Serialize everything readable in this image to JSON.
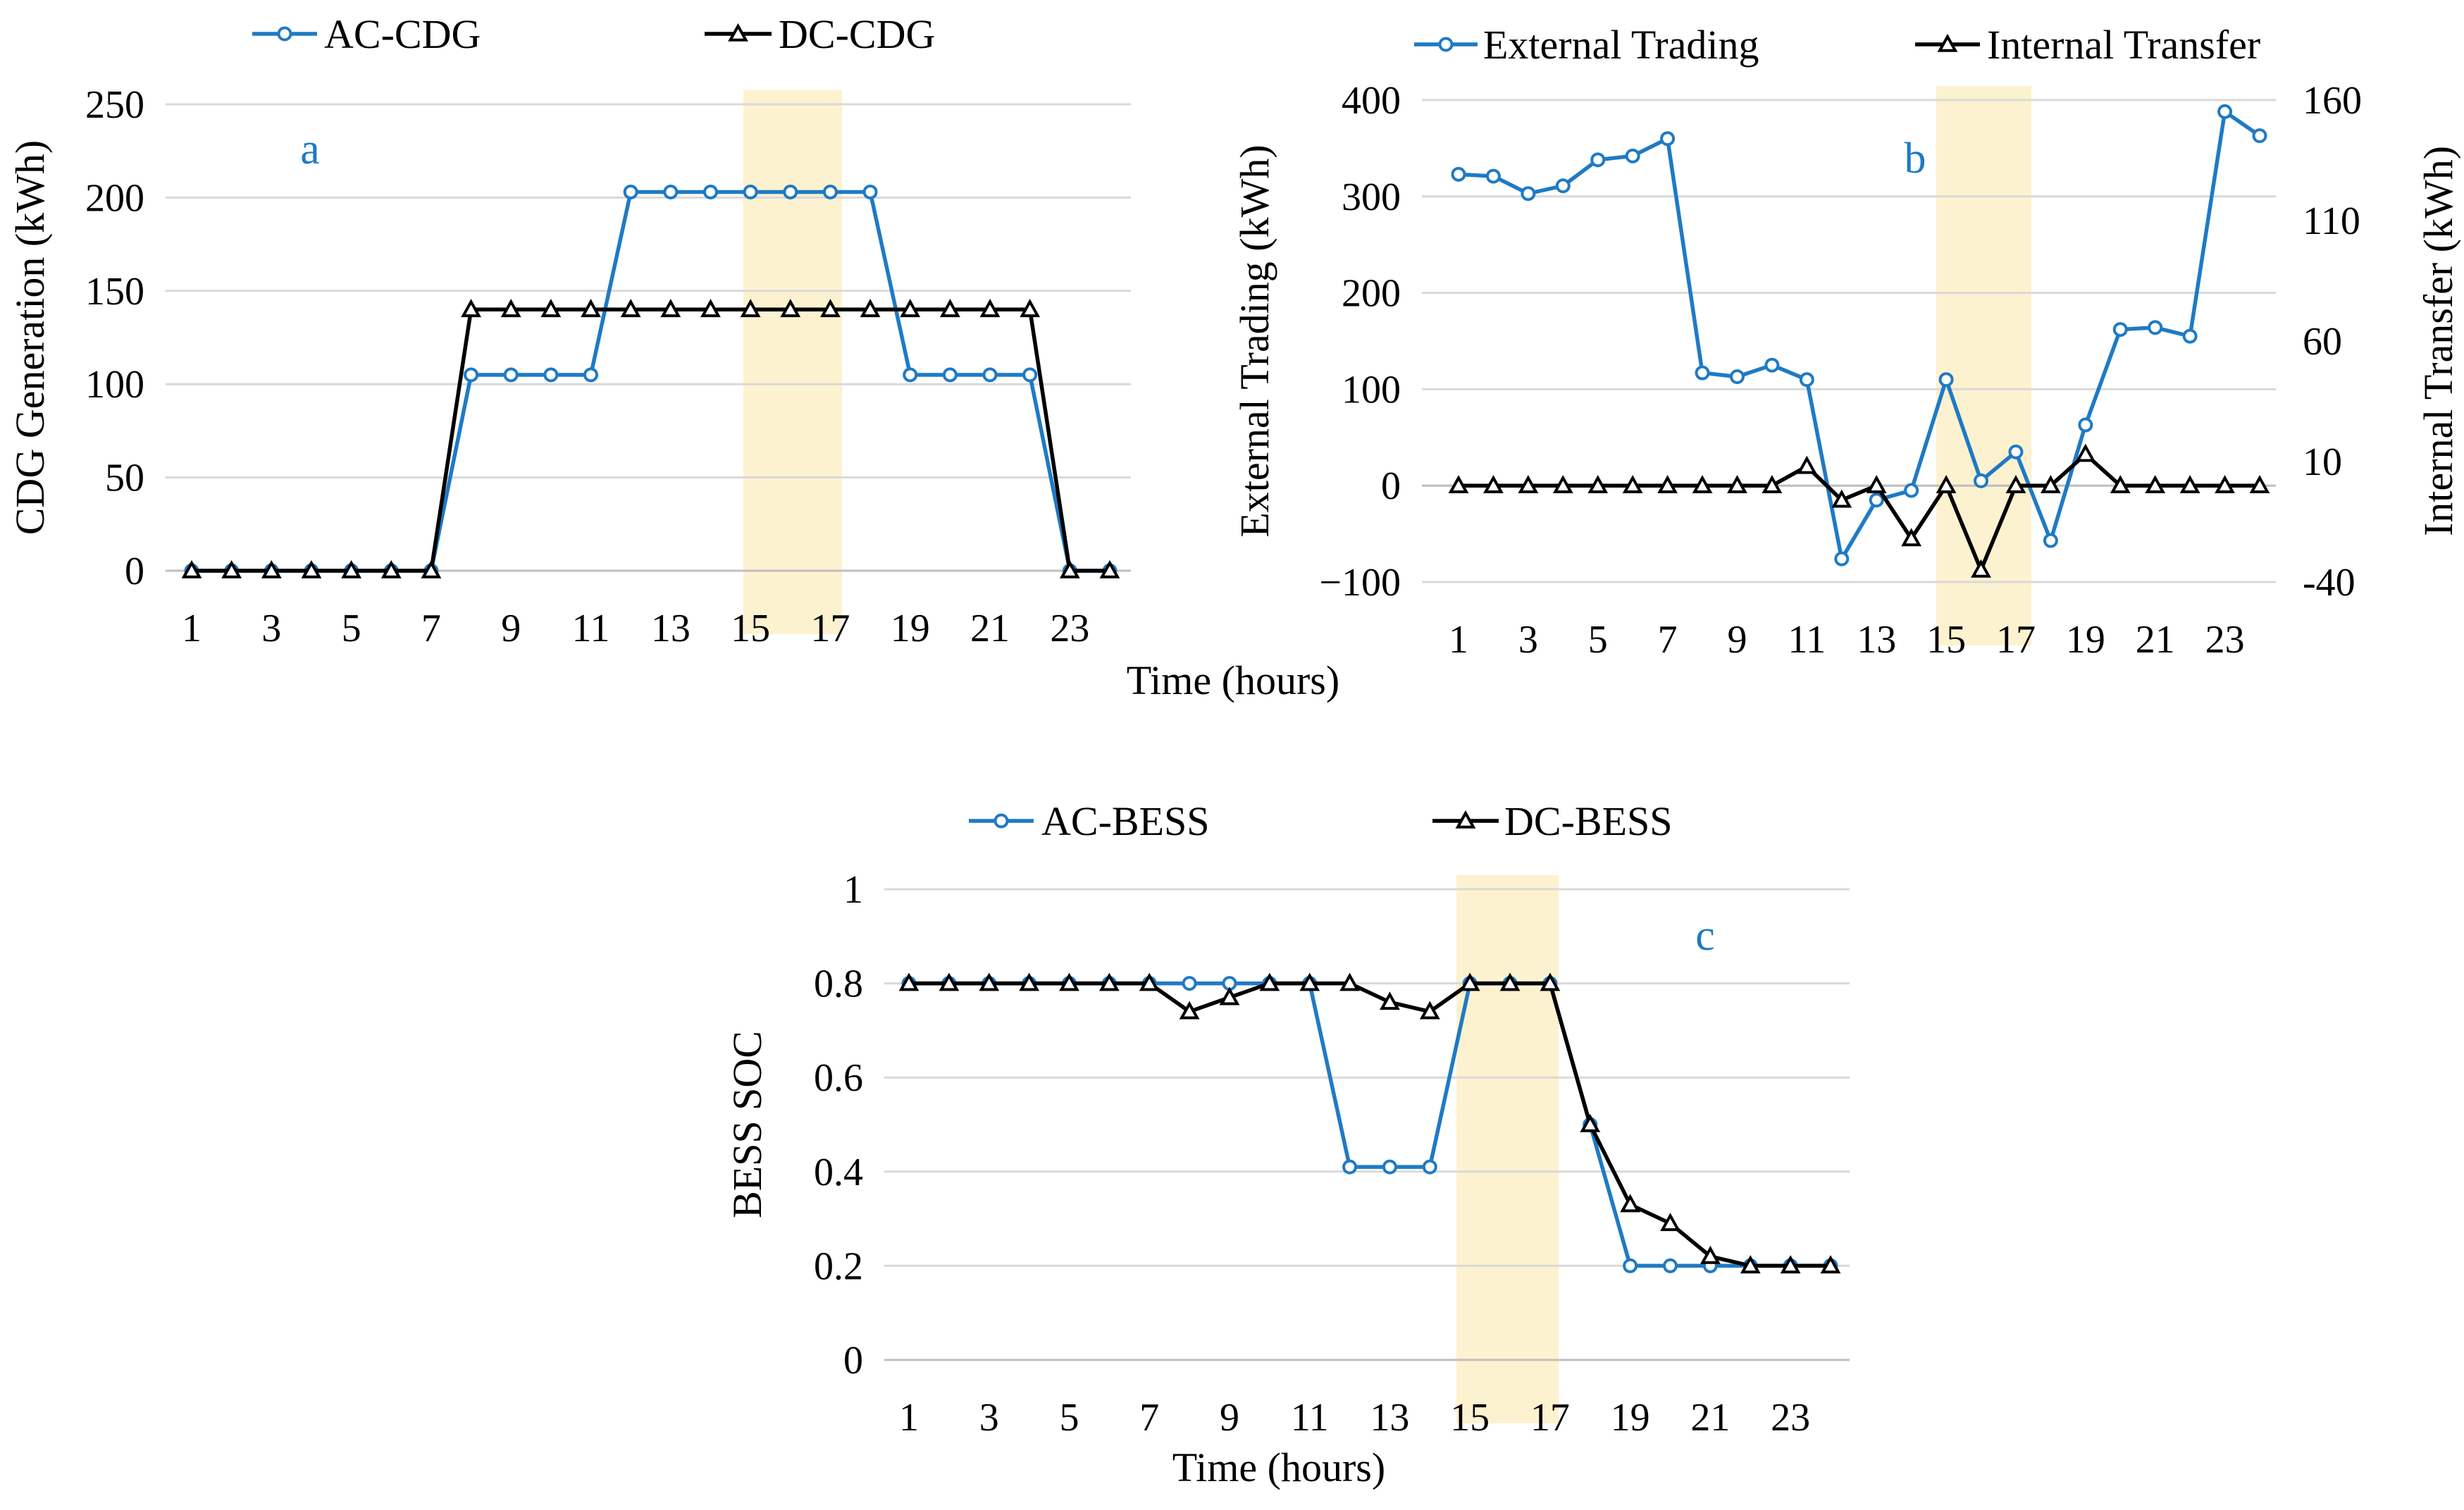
{
  "colors": {
    "blue": "#1f7ac4",
    "black": "#000000",
    "highlight": "#fdf0c8",
    "grid": "#d9d9d9"
  },
  "chart_data": [
    {
      "type": "line",
      "panel": "a",
      "x": [
        1,
        2,
        3,
        4,
        5,
        6,
        7,
        8,
        9,
        10,
        11,
        12,
        13,
        14,
        15,
        16,
        17,
        18,
        19,
        20,
        21,
        22,
        23,
        24
      ],
      "xticks": [
        "1",
        "3",
        "5",
        "7",
        "9",
        "11",
        "13",
        "15",
        "17",
        "19",
        "21",
        "23"
      ],
      "xlabel": "Time (hours)",
      "ylabel": "CDG Generation (kWh)",
      "ylim": [
        0,
        250
      ],
      "yticks": [
        "0",
        "50",
        "100",
        "150",
        "200",
        "250"
      ],
      "highlight": [
        15,
        17
      ],
      "grid": true,
      "legend_position": "top",
      "series": [
        {
          "name": "AC-CDG",
          "color": "#1f7ac4",
          "marker": "circle",
          "values": [
            0,
            0,
            0,
            0,
            0,
            0,
            0,
            105,
            105,
            105,
            105,
            203,
            203,
            203,
            203,
            203,
            203,
            203,
            105,
            105,
            105,
            105,
            0,
            0
          ]
        },
        {
          "name": "DC-CDG",
          "color": "#000000",
          "marker": "triangle",
          "values": [
            0,
            0,
            0,
            0,
            0,
            0,
            0,
            140,
            140,
            140,
            140,
            140,
            140,
            140,
            140,
            140,
            140,
            140,
            140,
            140,
            140,
            140,
            0,
            0
          ]
        }
      ]
    },
    {
      "type": "line",
      "panel": "b",
      "x": [
        1,
        2,
        3,
        4,
        5,
        6,
        7,
        8,
        9,
        10,
        11,
        12,
        13,
        14,
        15,
        16,
        17,
        18,
        19,
        20,
        21,
        22,
        23,
        24
      ],
      "xticks": [
        "1",
        "3",
        "5",
        "7",
        "9",
        "11",
        "13",
        "15",
        "17",
        "19",
        "21",
        "23"
      ],
      "ylabel": "External Trading (kWh)",
      "y2label": "Internal Transfer (kWh)",
      "ylim": [
        -100,
        400
      ],
      "y2lim": [
        -40,
        160
      ],
      "yticks": [
        "−100",
        "0",
        "100",
        "200",
        "300",
        "400"
      ],
      "y2ticks": [
        "-40",
        "10",
        "60",
        "110",
        "160"
      ],
      "highlight": [
        15,
        17
      ],
      "grid": true,
      "legend_position": "top",
      "series": [
        {
          "name": "External Trading",
          "axis": "left",
          "color": "#1f7ac4",
          "marker": "circle",
          "values": [
            323,
            321,
            303,
            311,
            338,
            342,
            360,
            117,
            113,
            125,
            110,
            -76,
            -15,
            -5,
            110,
            5,
            35,
            -57,
            63,
            162,
            164,
            155,
            388,
            363
          ]
        },
        {
          "name": "Internal Transfer",
          "axis": "right",
          "color": "#000000",
          "marker": "triangle",
          "values": [
            0,
            0,
            0,
            0,
            0,
            0,
            0,
            0,
            0,
            0,
            8,
            -6,
            0,
            -22,
            0,
            -35,
            0,
            0,
            13,
            0,
            0,
            0,
            0,
            0
          ]
        }
      ]
    },
    {
      "type": "line",
      "panel": "c",
      "x": [
        1,
        2,
        3,
        4,
        5,
        6,
        7,
        8,
        9,
        10,
        11,
        12,
        13,
        14,
        15,
        16,
        17,
        18,
        19,
        20,
        21,
        22,
        23,
        24
      ],
      "xticks": [
        "1",
        "3",
        "5",
        "7",
        "9",
        "11",
        "13",
        "15",
        "17",
        "19",
        "21",
        "23"
      ],
      "xlabel": "Time (hours)",
      "ylabel": "BESS SOC",
      "ylim": [
        0,
        1
      ],
      "yticks": [
        "0",
        "0.2",
        "0.4",
        "0.6",
        "0.8",
        "1"
      ],
      "highlight": [
        15,
        17
      ],
      "grid": true,
      "legend_position": "top",
      "series": [
        {
          "name": "AC-BESS",
          "color": "#1f7ac4",
          "marker": "circle",
          "values": [
            0.8,
            0.8,
            0.8,
            0.8,
            0.8,
            0.8,
            0.8,
            0.8,
            0.8,
            0.8,
            0.8,
            0.41,
            0.41,
            0.41,
            0.8,
            0.8,
            0.8,
            0.5,
            0.2,
            0.2,
            0.2,
            0.2,
            0.2,
            0.2
          ]
        },
        {
          "name": "DC-BESS",
          "color": "#000000",
          "marker": "triangle",
          "values": [
            0.8,
            0.8,
            0.8,
            0.8,
            0.8,
            0.8,
            0.8,
            0.74,
            0.77,
            0.8,
            0.8,
            0.8,
            0.76,
            0.74,
            0.8,
            0.8,
            0.8,
            0.5,
            0.33,
            0.29,
            0.22,
            0.2,
            0.2,
            0.2
          ]
        }
      ]
    }
  ]
}
